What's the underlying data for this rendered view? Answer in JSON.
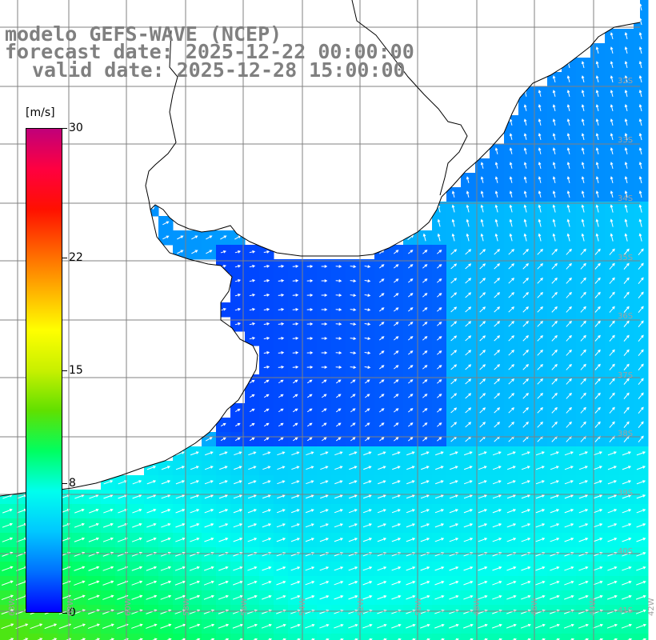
{
  "title": {
    "line1": "modelo GEFS-WAVE (NCEP)",
    "line2": "forecast date: 2025-12-22 00:00:00",
    "line3": "valid date: 2025-12-28 15:00:00"
  },
  "colorbar": {
    "unit": "[m/s]",
    "ticks": [
      "30",
      "22",
      "15",
      "8",
      "0"
    ],
    "tick_values": [
      30,
      22,
      15,
      8,
      0
    ],
    "min": 0,
    "max": 30,
    "colors": [
      "#0000ff",
      "#0070ff",
      "#00c8ff",
      "#00ffee",
      "#00ff60",
      "#60e000",
      "#c8f000",
      "#ffff00",
      "#ffb000",
      "#ff6000",
      "#ff1000",
      "#ff0040",
      "#c0007a"
    ]
  },
  "map": {
    "projection": "lat-lon",
    "lon_range": [
      -64,
      -42
    ],
    "lat_range": [
      -42,
      -31
    ],
    "lat_labels": [
      "32S",
      "33S",
      "34S",
      "35S",
      "36S",
      "37S",
      "38S",
      "39S",
      "40S",
      "41S"
    ],
    "lon_labels": [
      "63W",
      "62W",
      "60W",
      "58W",
      "56W",
      "54W",
      "52W",
      "50W",
      "48W",
      "46W",
      "44W",
      "42W"
    ],
    "land_color": "#ffffff",
    "coast_color": "#000000",
    "grid_color": "#808080",
    "wind_field": "10 m wind speed (colored) and direction (arrows), speeds mostly 2-10 m/s, strongest to the south-west"
  }
}
